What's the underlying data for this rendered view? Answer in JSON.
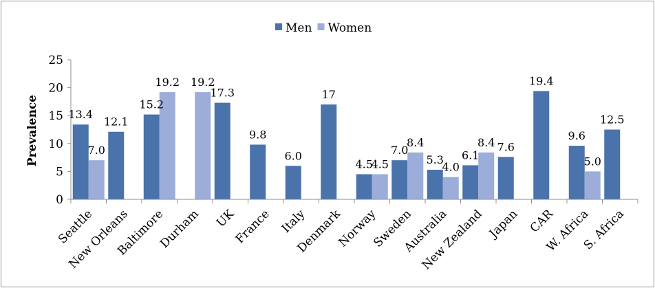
{
  "chart_data": {
    "type": "bar",
    "title": "",
    "xlabel": "",
    "ylabel": "Prevalence",
    "ylim": [
      0,
      25
    ],
    "yticks": [
      0,
      5,
      10,
      15,
      20,
      25
    ],
    "grid": false,
    "legend_position": "top",
    "categories": [
      "Seattle",
      "New Orleans",
      "Baltimore",
      "Durham",
      "UK",
      "France",
      "Italy",
      "Denmark",
      "Norway",
      "Sweden",
      "Australia",
      "New Zealand",
      "Japan",
      "CAR",
      "W. Africa",
      "S. Africa"
    ],
    "series": [
      {
        "name": "Men",
        "color": "#4a72ab",
        "values": [
          13.4,
          12.1,
          15.2,
          null,
          17.3,
          9.8,
          6.0,
          17,
          4.5,
          7.0,
          5.3,
          6.1,
          7.6,
          19.4,
          9.6,
          12.5
        ],
        "labels": [
          "13.4",
          "12.1",
          "15.2",
          null,
          "17.3",
          "9.8",
          "6.0",
          "17",
          "4.5",
          "7.0",
          "5.3",
          "6.1",
          "7.6",
          "19.4",
          "9.6",
          "12.5"
        ]
      },
      {
        "name": "Women",
        "color": "#9badd8",
        "values": [
          7.0,
          null,
          19.2,
          19.2,
          null,
          null,
          null,
          null,
          4.5,
          8.4,
          4.0,
          8.4,
          null,
          null,
          5.0,
          null
        ],
        "labels": [
          "7.0",
          null,
          "19.2",
          "19.2",
          null,
          null,
          null,
          null,
          "4.5",
          "8.4",
          "4.0",
          "8.4",
          null,
          null,
          "5.0",
          null
        ]
      }
    ]
  }
}
